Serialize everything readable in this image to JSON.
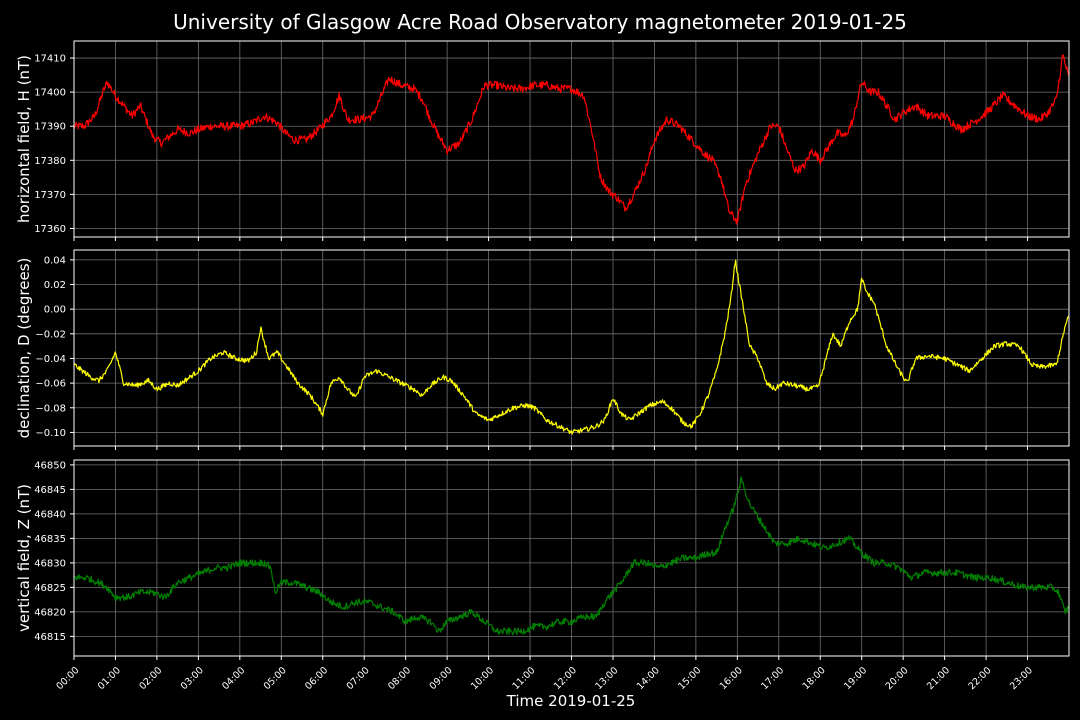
{
  "title": "University of Glasgow Acre Road Observatory magnetometer 2019-01-25",
  "xlabel": "Time 2019-01-25",
  "colors": {
    "background": "#000000",
    "grid": "#6e6e6e",
    "axes": "#ffffff",
    "H": "#ff0000",
    "D": "#ffff00",
    "Z": "#008000"
  },
  "chart_data": [
    {
      "type": "line",
      "ylabel": "horizontal field, H (nT)",
      "ylim": [
        17357.5,
        17415
      ],
      "yticks": [
        17360,
        17370,
        17380,
        17390,
        17400,
        17410
      ],
      "y_tick_labels": [
        "17360",
        "17370",
        "17380",
        "17390",
        "17400",
        "17410"
      ],
      "xlim": [
        0,
        24
      ],
      "xticks": [
        0,
        1,
        2,
        3,
        4,
        5,
        6,
        7,
        8,
        9,
        10,
        11,
        12,
        13,
        14,
        15,
        16,
        17,
        18,
        19,
        20,
        21,
        22,
        23
      ],
      "x_tick_labels": [
        "00:00",
        "01:00",
        "02:00",
        "03:00",
        "04:00",
        "05:00",
        "06:00",
        "07:00",
        "08:00",
        "09:00",
        "10:00",
        "11:00",
        "12:00",
        "13:00",
        "14:00",
        "15:00",
        "16:00",
        "17:00",
        "18:00",
        "19:00",
        "20:00",
        "21:00",
        "22:00",
        "23:00"
      ],
      "grid": true,
      "series": [
        {
          "color": "#ff0000",
          "noise": 1.2,
          "x": [
            0,
            0.25,
            0.5,
            0.7,
            0.8,
            1.0,
            1.2,
            1.4,
            1.6,
            1.9,
            2.1,
            2.3,
            2.5,
            2.8,
            3.0,
            3.3,
            3.6,
            4.0,
            4.3,
            4.6,
            4.9,
            5.1,
            5.3,
            5.6,
            5.9,
            6.2,
            6.4,
            6.6,
            6.9,
            7.2,
            7.6,
            7.9,
            8.2,
            8.4,
            8.6,
            8.8,
            9.0,
            9.3,
            9.6,
            9.9,
            10.2,
            10.5,
            10.8,
            11.1,
            11.4,
            11.7,
            12.0,
            12.3,
            12.5,
            12.7,
            12.9,
            13.1,
            13.3,
            13.5,
            13.8,
            14.0,
            14.3,
            14.6,
            14.9,
            15.2,
            15.4,
            15.6,
            15.8,
            16.0,
            16.2,
            16.5,
            16.8,
            17.0,
            17.2,
            17.4,
            17.6,
            17.8,
            18.0,
            18.2,
            18.4,
            18.6,
            18.8,
            18.9,
            19.0,
            19.2,
            19.4,
            19.6,
            19.8,
            20.0,
            20.3,
            20.6,
            21.0,
            21.4,
            21.8,
            22.1,
            22.4,
            22.7,
            23.0,
            23.3,
            23.5,
            23.7,
            23.85,
            24
          ],
          "y": [
            17390,
            17390,
            17393,
            17400,
            17403,
            17399,
            17396,
            17393,
            17396,
            17387,
            17385,
            17387,
            17389,
            17388,
            17389,
            17390,
            17390,
            17390,
            17391,
            17393,
            17391,
            17388,
            17386,
            17386,
            17389,
            17393,
            17399,
            17392,
            17392,
            17393,
            17404,
            17402,
            17401,
            17398,
            17392,
            17387,
            17383,
            17385,
            17392,
            17402,
            17402,
            17401,
            17401,
            17402,
            17402,
            17401,
            17401,
            17399,
            17388,
            17375,
            17371,
            17369,
            17366,
            17370,
            17378,
            17386,
            17392,
            17390,
            17386,
            17382,
            17380,
            17375,
            17365,
            17362,
            17373,
            17382,
            17390,
            17390,
            17383,
            17377,
            17378,
            17383,
            17380,
            17384,
            17388,
            17387,
            17392,
            17398,
            17403,
            17400,
            17400,
            17396,
            17392,
            17394,
            17396,
            17393,
            17393,
            17389,
            17392,
            17395,
            17399,
            17396,
            17393,
            17392,
            17394,
            17398,
            17411,
            17404
          ]
        }
      ]
    },
    {
      "type": "line",
      "ylabel": "declination, D (degrees)",
      "ylim": [
        -0.111,
        0.048
      ],
      "yticks": [
        -0.1,
        -0.08,
        -0.06,
        -0.04,
        -0.02,
        0.0,
        0.02,
        0.04
      ],
      "y_tick_labels": [
        "−0.10",
        "−0.08",
        "−0.06",
        "−0.04",
        "−0.02",
        "0.00",
        "0.02",
        "0.04"
      ],
      "xlim": [
        0,
        24
      ],
      "xticks": [
        0,
        1,
        2,
        3,
        4,
        5,
        6,
        7,
        8,
        9,
        10,
        11,
        12,
        13,
        14,
        15,
        16,
        17,
        18,
        19,
        20,
        21,
        22,
        23
      ],
      "x_tick_labels": [
        "00:00",
        "01:00",
        "02:00",
        "03:00",
        "04:00",
        "05:00",
        "06:00",
        "07:00",
        "08:00",
        "09:00",
        "10:00",
        "11:00",
        "12:00",
        "13:00",
        "14:00",
        "15:00",
        "16:00",
        "17:00",
        "18:00",
        "19:00",
        "20:00",
        "21:00",
        "22:00",
        "23:00"
      ],
      "grid": true,
      "series": [
        {
          "color": "#ffff00",
          "noise": 0.002,
          "x": [
            0,
            0.2,
            0.4,
            0.6,
            0.8,
            1.0,
            1.2,
            1.5,
            1.8,
            2.0,
            2.3,
            2.5,
            2.8,
            3.0,
            3.3,
            3.6,
            3.9,
            4.2,
            4.4,
            4.5,
            4.7,
            4.9,
            5.1,
            5.4,
            5.7,
            6.0,
            6.2,
            6.4,
            6.6,
            6.8,
            7.0,
            7.3,
            7.6,
            7.9,
            8.2,
            8.4,
            8.6,
            8.9,
            9.1,
            9.4,
            9.7,
            10.0,
            10.3,
            10.6,
            10.9,
            11.1,
            11.4,
            11.7,
            12.0,
            12.3,
            12.6,
            12.8,
            13.0,
            13.2,
            13.4,
            13.6,
            13.9,
            14.2,
            14.4,
            14.7,
            14.9,
            15.1,
            15.3,
            15.5,
            15.7,
            15.85,
            15.95,
            16.1,
            16.3,
            16.5,
            16.7,
            16.9,
            17.1,
            17.4,
            17.7,
            17.95,
            18.1,
            18.3,
            18.5,
            18.7,
            18.9,
            19.0,
            19.1,
            19.3,
            19.6,
            19.9,
            20.1,
            20.3,
            20.6,
            21.0,
            21.3,
            21.6,
            21.9,
            22.2,
            22.5,
            22.8,
            23.1,
            23.3,
            23.5,
            23.7,
            23.9,
            24
          ],
          "y": [
            -0.045,
            -0.05,
            -0.055,
            -0.058,
            -0.05,
            -0.035,
            -0.06,
            -0.062,
            -0.058,
            -0.065,
            -0.06,
            -0.062,
            -0.055,
            -0.05,
            -0.04,
            -0.035,
            -0.04,
            -0.042,
            -0.035,
            -0.015,
            -0.04,
            -0.035,
            -0.045,
            -0.06,
            -0.07,
            -0.085,
            -0.06,
            -0.055,
            -0.065,
            -0.072,
            -0.055,
            -0.05,
            -0.055,
            -0.06,
            -0.065,
            -0.07,
            -0.062,
            -0.055,
            -0.058,
            -0.07,
            -0.085,
            -0.09,
            -0.085,
            -0.08,
            -0.078,
            -0.08,
            -0.09,
            -0.095,
            -0.1,
            -0.098,
            -0.095,
            -0.09,
            -0.072,
            -0.085,
            -0.09,
            -0.085,
            -0.078,
            -0.075,
            -0.08,
            -0.092,
            -0.095,
            -0.085,
            -0.07,
            -0.05,
            -0.02,
            0.01,
            0.04,
            0.01,
            -0.03,
            -0.04,
            -0.06,
            -0.065,
            -0.06,
            -0.062,
            -0.065,
            -0.063,
            -0.045,
            -0.02,
            -0.03,
            -0.01,
            0.0,
            0.025,
            0.015,
            0.005,
            -0.03,
            -0.05,
            -0.06,
            -0.04,
            -0.038,
            -0.04,
            -0.045,
            -0.05,
            -0.04,
            -0.03,
            -0.028,
            -0.03,
            -0.045,
            -0.047,
            -0.046,
            -0.045,
            -0.015,
            -0.005
          ]
        }
      ]
    },
    {
      "type": "line",
      "ylabel": "vertical field, Z (nT)",
      "ylim": [
        46811,
        46851
      ],
      "yticks": [
        46815,
        46820,
        46825,
        46830,
        46835,
        46840,
        46845,
        46850
      ],
      "y_tick_labels": [
        "46815",
        "46820",
        "46825",
        "46830",
        "46835",
        "46840",
        "46845",
        "46850"
      ],
      "xlim": [
        0,
        24
      ],
      "xticks": [
        0,
        1,
        2,
        3,
        4,
        5,
        6,
        7,
        8,
        9,
        10,
        11,
        12,
        13,
        14,
        15,
        16,
        17,
        18,
        19,
        20,
        21,
        22,
        23
      ],
      "x_tick_labels": [
        "00:00",
        "01:00",
        "02:00",
        "03:00",
        "04:00",
        "05:00",
        "06:00",
        "07:00",
        "08:00",
        "09:00",
        "10:00",
        "11:00",
        "12:00",
        "13:00",
        "14:00",
        "15:00",
        "16:00",
        "17:00",
        "18:00",
        "19:00",
        "20:00",
        "21:00",
        "22:00",
        "23:00"
      ],
      "grid": true,
      "series": [
        {
          "color": "#008000",
          "noise": 0.7,
          "x": [
            0,
            0.3,
            0.6,
            0.8,
            1.0,
            1.3,
            1.6,
            1.9,
            2.2,
            2.5,
            2.8,
            3.1,
            3.4,
            3.7,
            4.0,
            4.3,
            4.6,
            4.75,
            4.85,
            5.0,
            5.3,
            5.6,
            5.9,
            6.2,
            6.5,
            6.8,
            7.1,
            7.4,
            7.7,
            8.0,
            8.3,
            8.6,
            8.8,
            9.0,
            9.3,
            9.6,
            9.9,
            10.2,
            10.5,
            10.8,
            11.1,
            11.4,
            11.7,
            12.0,
            12.3,
            12.6,
            12.8,
            13.0,
            13.2,
            13.5,
            13.8,
            14.1,
            14.4,
            14.7,
            15.0,
            15.3,
            15.5,
            15.7,
            15.9,
            16.1,
            16.3,
            16.6,
            16.9,
            17.2,
            17.5,
            17.8,
            18.1,
            18.4,
            18.7,
            19.0,
            19.3,
            19.6,
            19.9,
            20.2,
            20.5,
            20.9,
            21.3,
            21.7,
            22.1,
            22.5,
            22.9,
            23.3,
            23.6,
            23.75,
            23.9,
            24
          ],
          "y": [
            46827,
            46827,
            46826,
            46825,
            46823,
            46823,
            46824,
            46824,
            46823,
            46826,
            46827,
            46828,
            46829,
            46829,
            46830,
            46830,
            46830,
            46829,
            46824,
            46826,
            46826,
            46825,
            46824,
            46822,
            46821,
            46822,
            46822,
            46821,
            46820,
            46818,
            46819,
            46818,
            46816,
            46818,
            46819,
            46820,
            46818,
            46816,
            46816,
            46816,
            46817,
            46817,
            46818,
            46818,
            46819,
            46819,
            46822,
            46824,
            46826,
            46830,
            46830,
            46829,
            46830,
            46831,
            46831,
            46832,
            46832,
            46837,
            46841,
            46847,
            46842,
            46838,
            46834,
            46834,
            46835,
            46834,
            46833,
            46834,
            46835,
            46832,
            46830,
            46830,
            46829,
            46827,
            46828,
            46828,
            46828,
            46827,
            46827,
            46826,
            46825,
            46825,
            46825,
            46824,
            46820,
            46821
          ]
        }
      ]
    }
  ]
}
